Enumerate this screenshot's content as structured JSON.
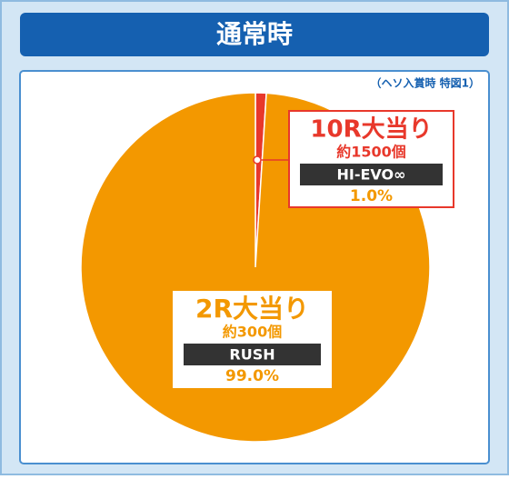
{
  "chart_data": {
    "type": "pie",
    "title": "通常時",
    "subtitle": "（ヘソ入賞時 特図1）",
    "categories": [
      "10R大当り",
      "2R大当り"
    ],
    "payouts": [
      "約1500個",
      "約300個"
    ],
    "modes": [
      "HI-EVO∞",
      "RUSH"
    ],
    "values": [
      1.0,
      99.0
    ],
    "value_labels": [
      "1.0%",
      "99.0%"
    ],
    "colors": [
      "#e8382b",
      "#f39800"
    ]
  }
}
